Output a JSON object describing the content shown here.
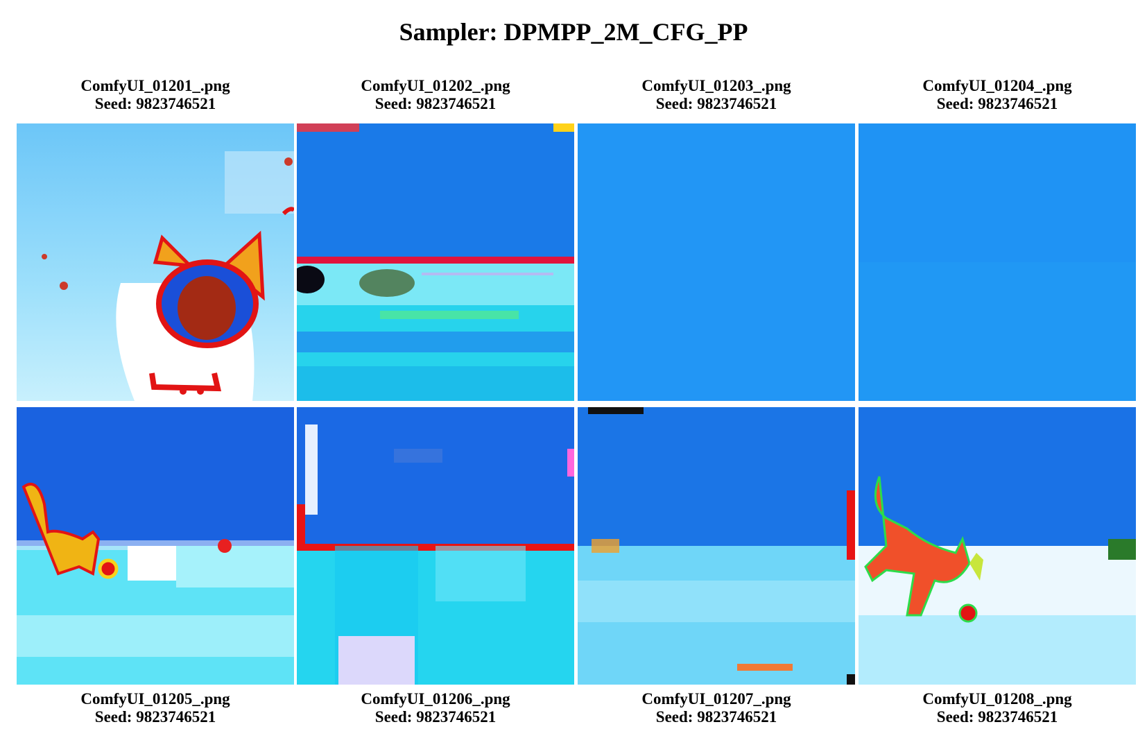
{
  "title": "Sampler: DPMPP_2M_CFG_PP",
  "images": [
    {
      "filename": "ComfyUI_01201_.png",
      "seed_line": "Seed: 9823746521"
    },
    {
      "filename": "ComfyUI_01202_.png",
      "seed_line": "Seed: 9823746521"
    },
    {
      "filename": "ComfyUI_01203_.png",
      "seed_line": "Seed: 9823746521"
    },
    {
      "filename": "ComfyUI_01204_.png",
      "seed_line": "Seed: 9823746521"
    },
    {
      "filename": "ComfyUI_01205_.png",
      "seed_line": "Seed: 9823746521"
    },
    {
      "filename": "ComfyUI_01206_.png",
      "seed_line": "Seed: 9823746521"
    },
    {
      "filename": "ComfyUI_01207_.png",
      "seed_line": "Seed: 9823746521"
    },
    {
      "filename": "ComfyUI_01208_.png",
      "seed_line": "Seed: 9823746521"
    }
  ]
}
